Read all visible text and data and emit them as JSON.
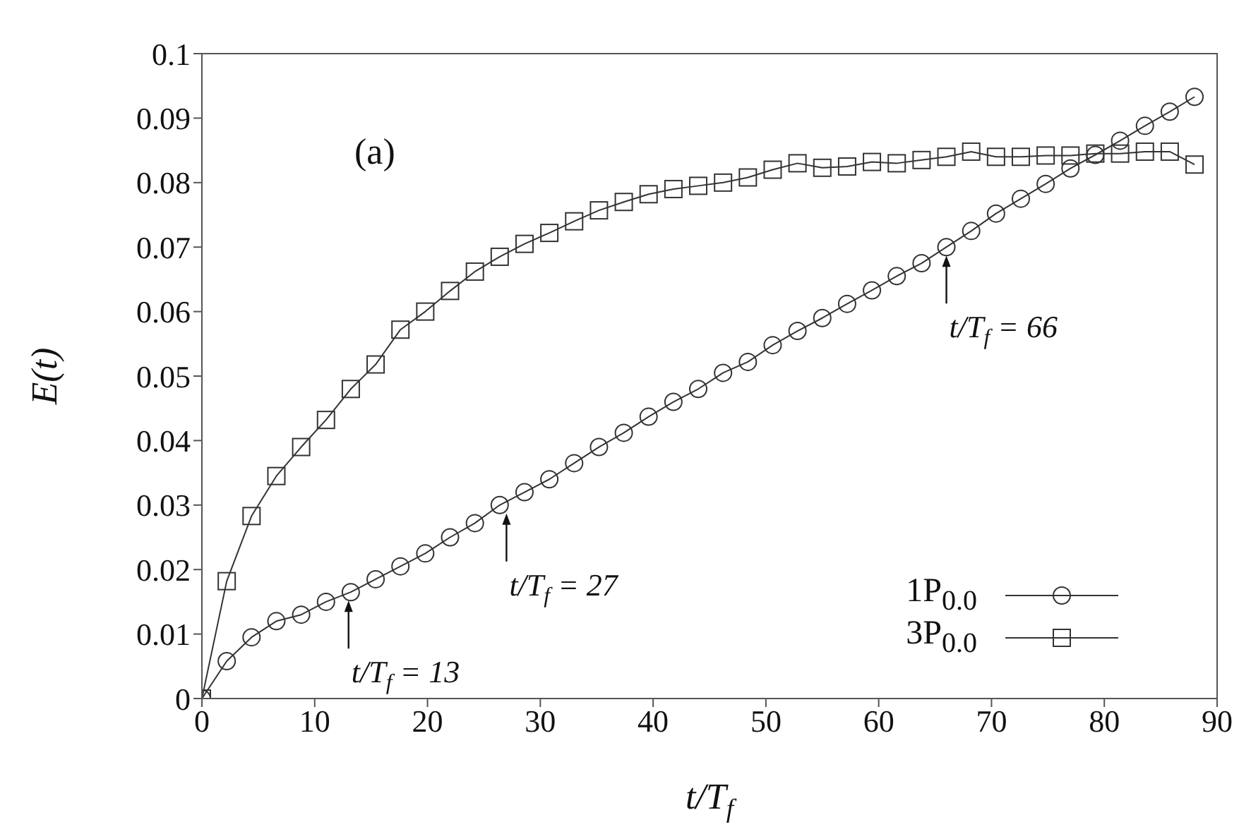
{
  "chart_data": {
    "type": "line",
    "xlabel": "t/T$_{f}$",
    "ylabel": "E(t)",
    "x": [
      0,
      2.2,
      4.4,
      6.6,
      8.8,
      11,
      13.2,
      15.4,
      17.6,
      19.8,
      22,
      24.2,
      26.4,
      28.6,
      30.8,
      33,
      35.2,
      37.4,
      39.6,
      41.8,
      44,
      46.2,
      48.4,
      50.6,
      52.8,
      55,
      57.2,
      59.4,
      61.6,
      63.8,
      66,
      68.2,
      70.4,
      72.6,
      74.8,
      77,
      79.2,
      81.4,
      83.6,
      85.8,
      88
    ],
    "series": [
      {
        "name": "1P$_{0.0}$",
        "color": "#333333",
        "marker": "circle",
        "values": [
          0,
          0.0058,
          0.0095,
          0.012,
          0.013,
          0.015,
          0.0165,
          0.0185,
          0.0205,
          0.0225,
          0.025,
          0.0272,
          0.03,
          0.032,
          0.034,
          0.0365,
          0.039,
          0.0412,
          0.0437,
          0.046,
          0.048,
          0.0505,
          0.0522,
          0.0548,
          0.057,
          0.059,
          0.0612,
          0.0633,
          0.0655,
          0.0675,
          0.07,
          0.0725,
          0.0752,
          0.0775,
          0.0798,
          0.0822,
          0.0843,
          0.0865,
          0.0888,
          0.091,
          0.0933
        ]
      },
      {
        "name": "3P$_{0.0}$",
        "color": "#333333",
        "marker": "square",
        "values": [
          0,
          0.0182,
          0.0283,
          0.0345,
          0.039,
          0.0432,
          0.048,
          0.0518,
          0.0572,
          0.06,
          0.0632,
          0.0662,
          0.0685,
          0.0705,
          0.0722,
          0.074,
          0.0757,
          0.077,
          0.0782,
          0.079,
          0.0795,
          0.08,
          0.0808,
          0.082,
          0.083,
          0.0823,
          0.0825,
          0.0832,
          0.083,
          0.0835,
          0.084,
          0.0848,
          0.084,
          0.084,
          0.0842,
          0.0842,
          0.0845,
          0.0845,
          0.0848,
          0.0848,
          0.0828
        ]
      }
    ],
    "xlim": [
      0,
      90
    ],
    "xticks": [
      0,
      10,
      20,
      30,
      40,
      50,
      60,
      70,
      80,
      90
    ],
    "ylim": [
      0,
      0.1
    ],
    "yticks": [
      0,
      0.01,
      0.02,
      0.03,
      0.04,
      0.05,
      0.06,
      0.07,
      0.08,
      0.09,
      0.1
    ],
    "grid": false,
    "legend": "bottom right",
    "line_style": "solid",
    "annotations": [
      "(a)",
      {
        "text": "t/T$_{f}$ = 13",
        "x": 13,
        "y": 0.0165
      },
      {
        "text": "t/T$_{f}$ = 27",
        "x": 27,
        "y": 0.03
      },
      {
        "text": "t/T$_{f}$ = 66",
        "x": 66,
        "y": 0.07
      }
    ]
  }
}
